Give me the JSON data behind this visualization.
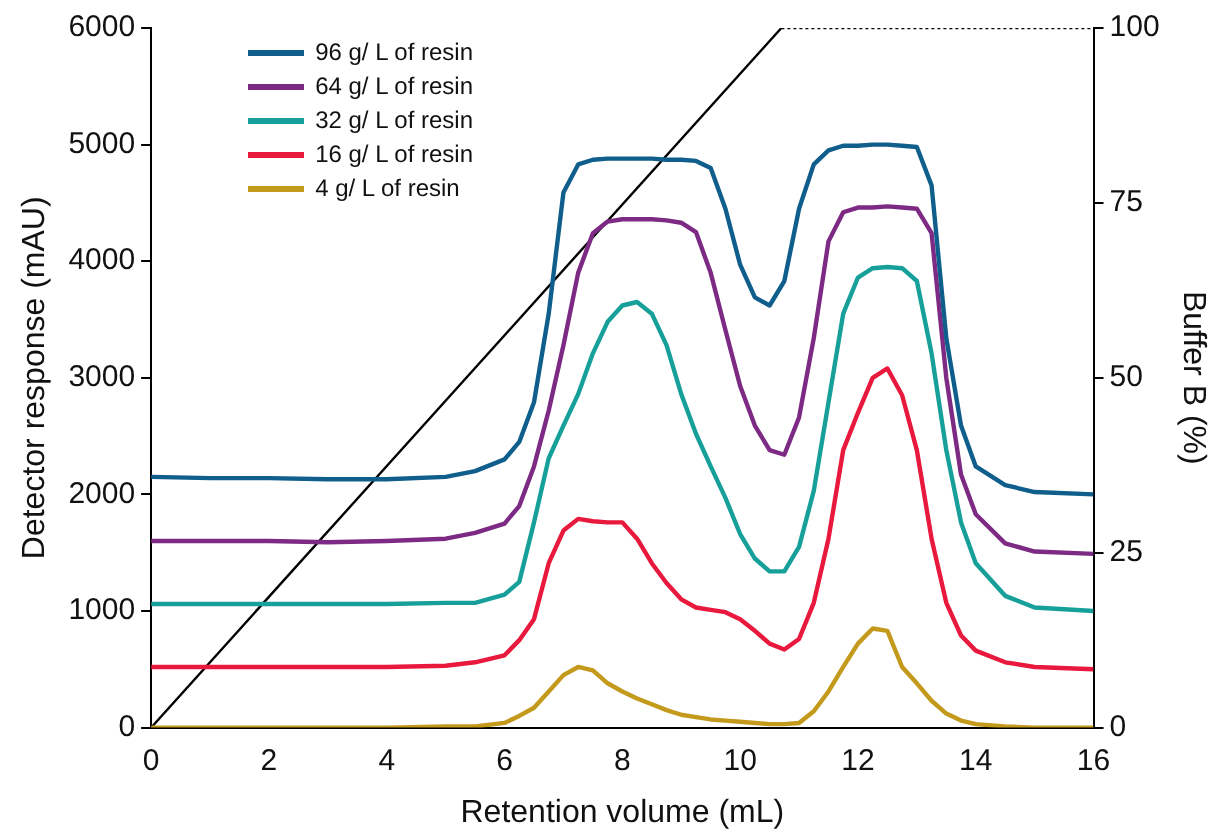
{
  "chart_data": {
    "type": "line",
    "xlabel": "Retention volume (mL)",
    "ylabel": "Detector response (mAU)",
    "y2label": "Buffer B (%)",
    "xlim": [
      0,
      16
    ],
    "xticks": [
      0,
      2,
      4,
      6,
      8,
      10,
      12,
      14,
      16
    ],
    "ylim": [
      0,
      6000
    ],
    "yticks": [
      0,
      1000,
      2000,
      3000,
      4000,
      5000,
      6000
    ],
    "y2lim": [
      0,
      100
    ],
    "y2ticks": [
      0,
      25,
      50,
      75,
      100
    ],
    "grid": false,
    "legend": "top left",
    "marker": "none",
    "x": [
      0,
      1,
      2,
      3,
      4,
      5,
      5.5,
      6,
      6.25,
      6.5,
      6.75,
      7,
      7.25,
      7.5,
      7.75,
      8,
      8.25,
      8.5,
      8.75,
      9,
      9.25,
      9.5,
      9.75,
      10,
      10.25,
      10.5,
      10.75,
      11,
      11.25,
      11.5,
      11.75,
      12,
      12.25,
      12.5,
      12.75,
      13,
      13.25,
      13.5,
      13.75,
      14,
      14.5,
      15,
      16
    ],
    "series": [
      {
        "name": "96 g/ L of resin",
        "color": "#0f5e8c",
        "values": [
          2150,
          2140,
          2140,
          2130,
          2130,
          2150,
          2200,
          2300,
          2450,
          2790,
          3550,
          4590,
          4830,
          4870,
          4880,
          4880,
          4880,
          4880,
          4870,
          4870,
          4860,
          4800,
          4450,
          3970,
          3690,
          3620,
          3830,
          4450,
          4830,
          4950,
          4990,
          4990,
          5000,
          5000,
          4990,
          4980,
          4650,
          3340,
          2590,
          2240,
          2080,
          2020,
          2000
        ]
      },
      {
        "name": "64 g/ L of resin",
        "color": "#7d2a84",
        "values": [
          1600,
          1600,
          1600,
          1590,
          1600,
          1620,
          1670,
          1750,
          1900,
          2240,
          2720,
          3280,
          3900,
          4240,
          4340,
          4360,
          4360,
          4360,
          4350,
          4330,
          4250,
          3900,
          3410,
          2930,
          2590,
          2380,
          2340,
          2660,
          3340,
          4170,
          4420,
          4460,
          4460,
          4470,
          4460,
          4450,
          4240,
          3000,
          2170,
          1830,
          1580,
          1510,
          1490
        ]
      },
      {
        "name": "32 g/ L of resin",
        "color": "#17a09a",
        "values": [
          1060,
          1060,
          1060,
          1060,
          1060,
          1070,
          1070,
          1140,
          1250,
          1760,
          2310,
          2590,
          2860,
          3210,
          3480,
          3620,
          3650,
          3550,
          3280,
          2860,
          2520,
          2240,
          1970,
          1660,
          1450,
          1340,
          1340,
          1550,
          2030,
          2790,
          3550,
          3860,
          3940,
          3950,
          3940,
          3830,
          3210,
          2380,
          1760,
          1410,
          1130,
          1030,
          1000
        ]
      },
      {
        "name": "16 g/ L of resin",
        "color": "#e8193c",
        "values": [
          520,
          520,
          520,
          520,
          520,
          530,
          560,
          620,
          750,
          930,
          1410,
          1690,
          1790,
          1770,
          1760,
          1760,
          1620,
          1410,
          1240,
          1100,
          1030,
          1010,
          990,
          930,
          830,
          720,
          670,
          760,
          1070,
          1620,
          2380,
          2700,
          3000,
          3080,
          2850,
          2380,
          1620,
          1070,
          790,
          660,
          560,
          520,
          500
        ]
      },
      {
        "name": "4 g/ L of resin",
        "color": "#c49a1c",
        "values": [
          0,
          0,
          0,
          0,
          0,
          10,
          10,
          40,
          100,
          170,
          310,
          450,
          520,
          490,
          380,
          310,
          250,
          200,
          150,
          110,
          90,
          70,
          60,
          50,
          40,
          30,
          30,
          40,
          140,
          310,
          520,
          720,
          850,
          830,
          520,
          380,
          230,
          120,
          60,
          30,
          10,
          0,
          0
        ]
      },
      {
        "color": "#000000",
        "axis": "y2",
        "x": [
          0,
          10.7
        ],
        "values": [
          0,
          100
        ],
        "line_style": "solid"
      },
      {
        "color": "#000000",
        "axis": "y2",
        "x": [
          10.7,
          16
        ],
        "values": [
          100,
          100
        ],
        "line_style": "dotted"
      }
    ]
  }
}
